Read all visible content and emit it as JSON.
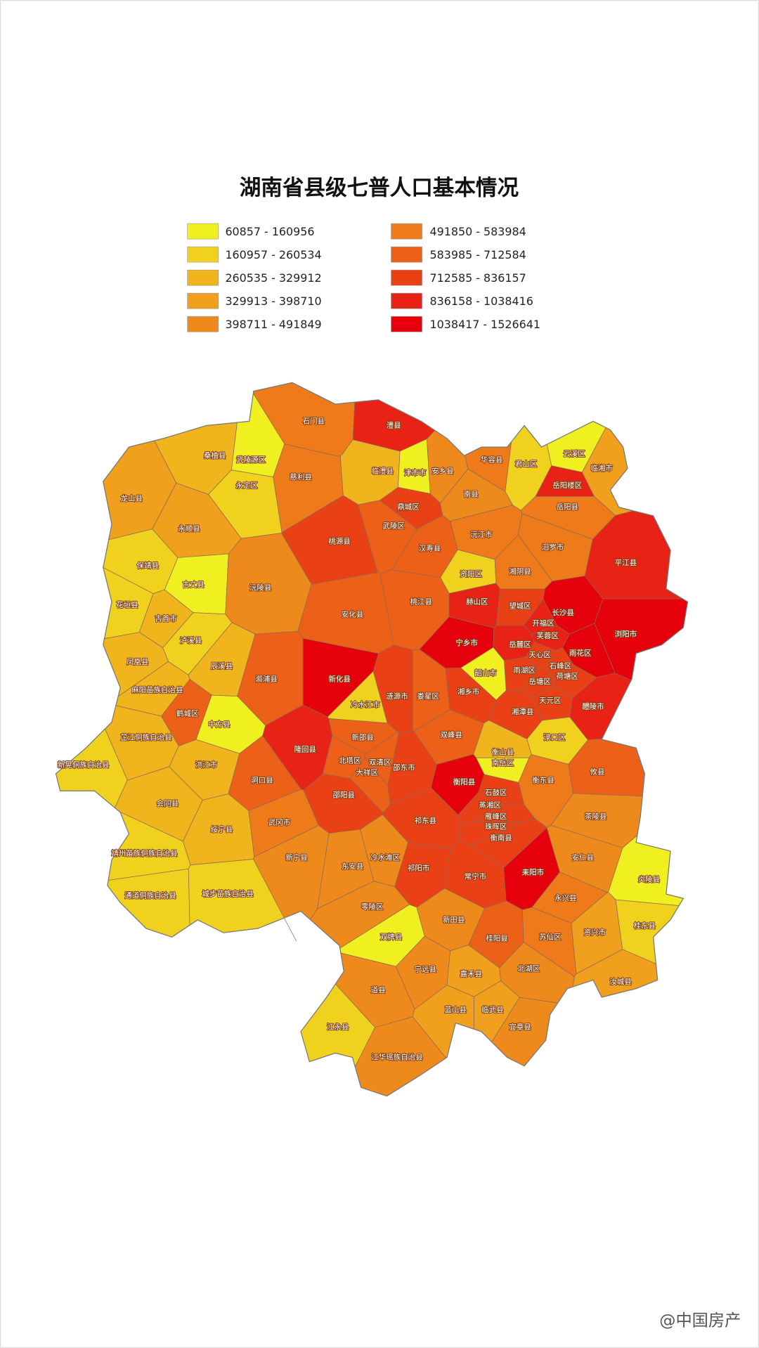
{
  "title": "湖南省县级七普人口基本情况",
  "legend": [
    {
      "label": "60857 - 160956",
      "color": "#f0f020"
    },
    {
      "label": "160957 - 260534",
      "color": "#f0d21e"
    },
    {
      "label": "260535 - 329912",
      "color": "#f0b41c"
    },
    {
      "label": "329913 - 398710",
      "color": "#f0a01c"
    },
    {
      "label": "398711 - 491849",
      "color": "#ee8a1c"
    },
    {
      "label": "491850 - 583984",
      "color": "#ee7a1a"
    },
    {
      "label": "583985 - 712584",
      "color": "#ec6018"
    },
    {
      "label": "712585 - 836157",
      "color": "#ea4016"
    },
    {
      "label": "836158 - 1038416",
      "color": "#e82214"
    },
    {
      "label": "1038417 - 1526641",
      "color": "#e6000c"
    }
  ],
  "regions": [
    {
      "name": "石门县",
      "color": "#ee7a1a"
    },
    {
      "name": "澧县",
      "color": "#e82214"
    },
    {
      "name": "桑植县",
      "color": "#f0b41c"
    },
    {
      "name": "慈利县",
      "color": "#ee7a1a"
    },
    {
      "name": "临澧县",
      "color": "#f0b41c"
    },
    {
      "name": "津市市",
      "color": "#f0f020"
    },
    {
      "name": "安乡县",
      "color": "#ee8a1c"
    },
    {
      "name": "华容县",
      "color": "#ee7a1a"
    },
    {
      "name": "君山区",
      "color": "#f0d21e"
    },
    {
      "name": "云溪区",
      "color": "#f0f020"
    },
    {
      "name": "临湘市",
      "color": "#f0a01c"
    },
    {
      "name": "岳阳楼区",
      "color": "#e82214"
    },
    {
      "name": "龙山县",
      "color": "#f0a01c"
    },
    {
      "name": "永定区",
      "color": "#f0d21e"
    },
    {
      "name": "武陵源区",
      "color": "#f0f020"
    },
    {
      "name": "鼎城区",
      "color": "#ea4016"
    },
    {
      "name": "南县",
      "color": "#ee8a1c"
    },
    {
      "name": "岳阳县",
      "color": "#ee7a1a"
    },
    {
      "name": "永顺县",
      "color": "#f0a01c"
    },
    {
      "name": "桃源县",
      "color": "#ea4016"
    },
    {
      "name": "武陵区",
      "color": "#ec6018"
    },
    {
      "name": "汉寿县",
      "color": "#ec6018"
    },
    {
      "name": "沅江市",
      "color": "#ee7a1a"
    },
    {
      "name": "汨罗市",
      "color": "#ee7a1a"
    },
    {
      "name": "平江县",
      "color": "#e82214"
    },
    {
      "name": "保靖县",
      "color": "#f0d21e"
    },
    {
      "name": "古丈县",
      "color": "#f0f020"
    },
    {
      "name": "沅陵县",
      "color": "#ee8a1c"
    },
    {
      "name": "资阳区",
      "color": "#f0d21e"
    },
    {
      "name": "湘阴县",
      "color": "#ee7a1a"
    },
    {
      "name": "花垣县",
      "color": "#f0d21e"
    },
    {
      "name": "吉首市",
      "color": "#f0b41c"
    },
    {
      "name": "安化县",
      "color": "#ec6018"
    },
    {
      "name": "桃江县",
      "color": "#ec6018"
    },
    {
      "name": "赫山区",
      "color": "#e82214"
    },
    {
      "name": "望城区",
      "color": "#ea4016"
    },
    {
      "name": "开福区",
      "color": "#e82214"
    },
    {
      "name": "长沙县",
      "color": "#e6000c"
    },
    {
      "name": "泸溪县",
      "color": "#f0d21e"
    },
    {
      "name": "浏阳市",
      "color": "#e6000c"
    },
    {
      "name": "宁乡市",
      "color": "#e6000c"
    },
    {
      "name": "岳麓区",
      "color": "#e82214"
    },
    {
      "name": "芙蓉区",
      "color": "#e82214"
    },
    {
      "name": "雨花区",
      "color": "#e6000c"
    },
    {
      "name": "天心区",
      "color": "#ea4016"
    },
    {
      "name": "凤凰县",
      "color": "#f0b41c"
    },
    {
      "name": "辰溪县",
      "color": "#f0b41c"
    },
    {
      "name": "新化县",
      "color": "#e6000c"
    },
    {
      "name": "涟源市",
      "color": "#ea4016"
    },
    {
      "name": "娄星区",
      "color": "#ec6018"
    },
    {
      "name": "湘乡市",
      "color": "#ea4016"
    },
    {
      "name": "韶山市",
      "color": "#f0f020"
    },
    {
      "name": "雨湖区",
      "color": "#ea4016"
    },
    {
      "name": "石峰区",
      "color": "#ea4016"
    },
    {
      "name": "岳塘区",
      "color": "#ea4016"
    },
    {
      "name": "荷塘区",
      "color": "#ea4016"
    },
    {
      "name": "渌口区",
      "color": "#f0d21e"
    },
    {
      "name": "麻阳苗族自治县",
      "color": "#f0b41c"
    },
    {
      "name": "溆浦县",
      "color": "#ec6018"
    },
    {
      "name": "冷水江市",
      "color": "#f0d21e"
    },
    {
      "name": "天元区",
      "color": "#ea4016"
    },
    {
      "name": "醴陵市",
      "color": "#e82214"
    },
    {
      "name": "鹤城区",
      "color": "#ec6018"
    },
    {
      "name": "中方县",
      "color": "#f0f020"
    },
    {
      "name": "湘潭县",
      "color": "#ea4016"
    },
    {
      "name": "芷江侗族自治县",
      "color": "#f0b41c"
    },
    {
      "name": "新邵县",
      "color": "#ec6018"
    },
    {
      "name": "双峰县",
      "color": "#ec6018"
    },
    {
      "name": "攸县",
      "color": "#ec6018"
    },
    {
      "name": "隆回县",
      "color": "#e82214"
    },
    {
      "name": "衡山县",
      "color": "#f0b41c"
    },
    {
      "name": "南岳区",
      "color": "#f0f020"
    },
    {
      "name": "新晃侗族自治县",
      "color": "#f0d21e"
    },
    {
      "name": "洪江市",
      "color": "#f0b41c"
    },
    {
      "name": "北塔区",
      "color": "#ec6018"
    },
    {
      "name": "双清区",
      "color": "#ec6018"
    },
    {
      "name": "大祥区",
      "color": "#ec6018"
    },
    {
      "name": "邵东市",
      "color": "#ea4016"
    },
    {
      "name": "衡阳县",
      "color": "#e6000c"
    },
    {
      "name": "衡东县",
      "color": "#ee7a1a"
    },
    {
      "name": "洞口县",
      "color": "#ec6018"
    },
    {
      "name": "会同县",
      "color": "#f0b41c"
    },
    {
      "name": "石鼓区",
      "color": "#ea4016"
    },
    {
      "name": "蒸湘区",
      "color": "#ea4016"
    },
    {
      "name": "雁峰区",
      "color": "#ea4016"
    },
    {
      "name": "珠晖区",
      "color": "#ea4016"
    },
    {
      "name": "衡南县",
      "color": "#ea4016"
    },
    {
      "name": "邵阳县",
      "color": "#ea4016"
    },
    {
      "name": "祁东县",
      "color": "#ea4016"
    },
    {
      "name": "茶陵县",
      "color": "#ee8a1c"
    },
    {
      "name": "绥宁县",
      "color": "#f0b41c"
    },
    {
      "name": "武冈市",
      "color": "#ee7a1a"
    },
    {
      "name": "靖州苗族侗族自治县",
      "color": "#f0d21e"
    },
    {
      "name": "新宁县",
      "color": "#ee8a1c"
    },
    {
      "name": "冷水滩区",
      "color": "#ee8a1c"
    },
    {
      "name": "祁阳市",
      "color": "#ea4016"
    },
    {
      "name": "常宁市",
      "color": "#ea4016"
    },
    {
      "name": "耒阳市",
      "color": "#e6000c"
    },
    {
      "name": "安仁县",
      "color": "#ee8a1c"
    },
    {
      "name": "炎陵县",
      "color": "#f0f020"
    },
    {
      "name": "东安县",
      "color": "#ee8a1c"
    },
    {
      "name": "通道侗族自治县",
      "color": "#f0d21e"
    },
    {
      "name": "城步苗族自治县",
      "color": "#f0d21e"
    },
    {
      "name": "永兴县",
      "color": "#ee7a1a"
    },
    {
      "name": "零陵区",
      "color": "#ee8a1c"
    },
    {
      "name": "桂阳县",
      "color": "#ec6018"
    },
    {
      "name": "苏仙区",
      "color": "#ee7a1a"
    },
    {
      "name": "资兴市",
      "color": "#f0a01c"
    },
    {
      "name": "桂东县",
      "color": "#f0d21e"
    },
    {
      "name": "双牌县",
      "color": "#f0f020"
    },
    {
      "name": "新田县",
      "color": "#ee8a1c"
    },
    {
      "name": "宁远县",
      "color": "#ee8a1c"
    },
    {
      "name": "嘉禾县",
      "color": "#f0a01c"
    },
    {
      "name": "北湖区",
      "color": "#ee8a1c"
    },
    {
      "name": "汝城县",
      "color": "#f0a01c"
    },
    {
      "name": "道县",
      "color": "#ee8a1c"
    },
    {
      "name": "江永县",
      "color": "#f0d21e"
    },
    {
      "name": "蓝山县",
      "color": "#f0a01c"
    },
    {
      "name": "临武县",
      "color": "#f0a01c"
    },
    {
      "name": "宜章县",
      "color": "#ee8a1c"
    },
    {
      "name": "江华瑶族自治县",
      "color": "#ee8a1c"
    }
  ],
  "watermark": "@中国房产"
}
